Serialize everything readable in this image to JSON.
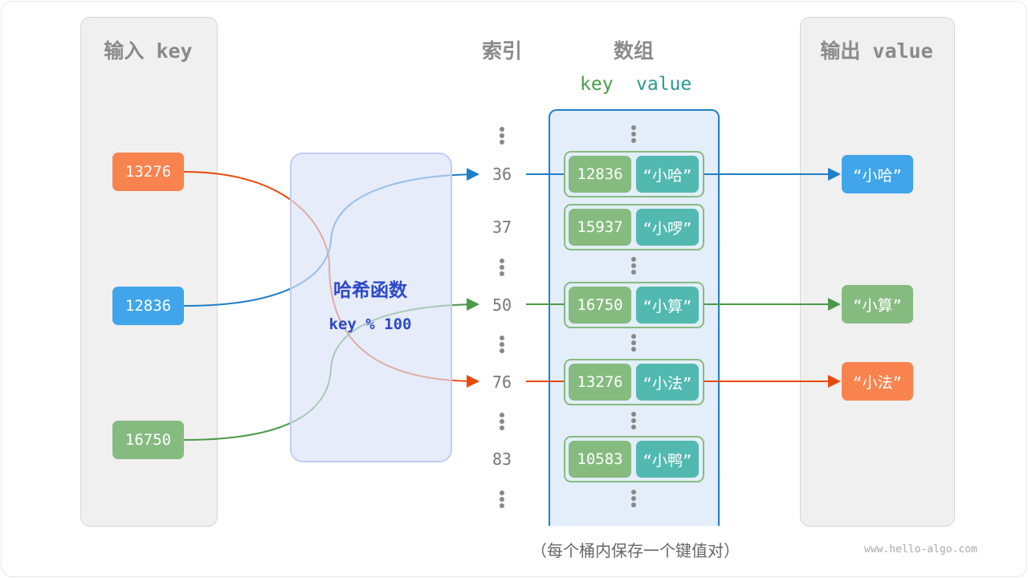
{
  "input_panel": {
    "title": "输入 key",
    "keys": [
      "13276",
      "12836",
      "16750"
    ]
  },
  "hash": {
    "title": "哈希函数",
    "formula": "key % 100"
  },
  "index_header": "索引",
  "array_header": "数组",
  "array_sub": {
    "key": "key",
    "value": "value"
  },
  "indices": [
    "36",
    "37",
    "50",
    "76",
    "83"
  ],
  "buckets": [
    {
      "key": "12836",
      "value": "“小哈”"
    },
    {
      "key": "15937",
      "value": "“小啰”"
    },
    {
      "key": "16750",
      "value": "“小算”"
    },
    {
      "key": "13276",
      "value": "“小法”"
    },
    {
      "key": "10583",
      "value": "“小鸭”"
    }
  ],
  "output_panel": {
    "title": "输出 value",
    "values": [
      "“小哈”",
      "“小算”",
      "“小法”"
    ]
  },
  "caption": "（每个桶内保存一个键值对）",
  "watermark": "www.hello-algo.com",
  "colors": {
    "orange": "#f9834f",
    "blue": "#40a5ea",
    "green": "#86bb80",
    "teal": "#52b9b0",
    "hash_text": "#2c4ac8"
  }
}
